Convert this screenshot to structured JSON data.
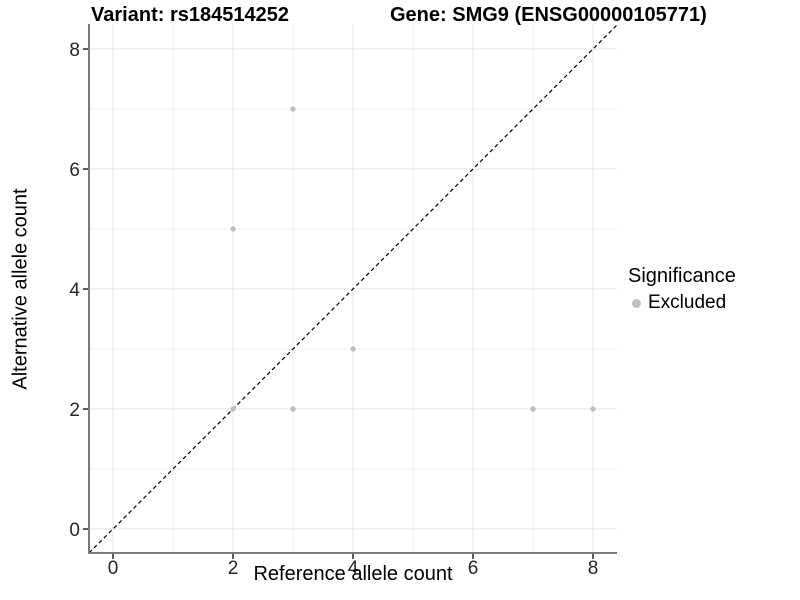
{
  "titles": {
    "variant": "Variant: rs184514252",
    "gene": "Gene: SMG9 (ENSG00000105771)"
  },
  "legend": {
    "title": "Significance",
    "entries": [
      {
        "label": "Excluded",
        "color": "#BFBFBF"
      }
    ]
  },
  "style": {
    "background": "#FFFFFF",
    "axis_line": "#7A7A7A",
    "tick_mark": "#333333",
    "tick_label": "#262626",
    "grid_major": "#E4E4E4",
    "grid_minor": "#F1F1F1"
  },
  "chart_data": {
    "type": "scatter",
    "title": "Variant: rs184514252 | Gene: SMG9 (ENSG00000105771)",
    "xlabel": "Reference allele count",
    "ylabel": "Alternative allele count",
    "xlim": [
      -0.4,
      8.4
    ],
    "ylim": [
      -0.4,
      8.4
    ],
    "xticks": [
      0,
      2,
      4,
      6,
      8
    ],
    "yticks": [
      0,
      2,
      4,
      6,
      8
    ],
    "minor_ticks": [
      1,
      3,
      5,
      7
    ],
    "grid": true,
    "legend_position": "right",
    "series": [
      {
        "name": "Excluded",
        "color": "#BFBFBF",
        "points": [
          [
            2,
            2
          ],
          [
            3,
            2
          ],
          [
            7,
            2
          ],
          [
            8,
            2
          ],
          [
            4,
            3
          ],
          [
            2,
            5
          ],
          [
            3,
            7
          ]
        ]
      }
    ],
    "reference_line": {
      "label": "identity y = x",
      "slope": 1,
      "intercept": 0,
      "style": "dashed",
      "color": "#000000"
    }
  }
}
